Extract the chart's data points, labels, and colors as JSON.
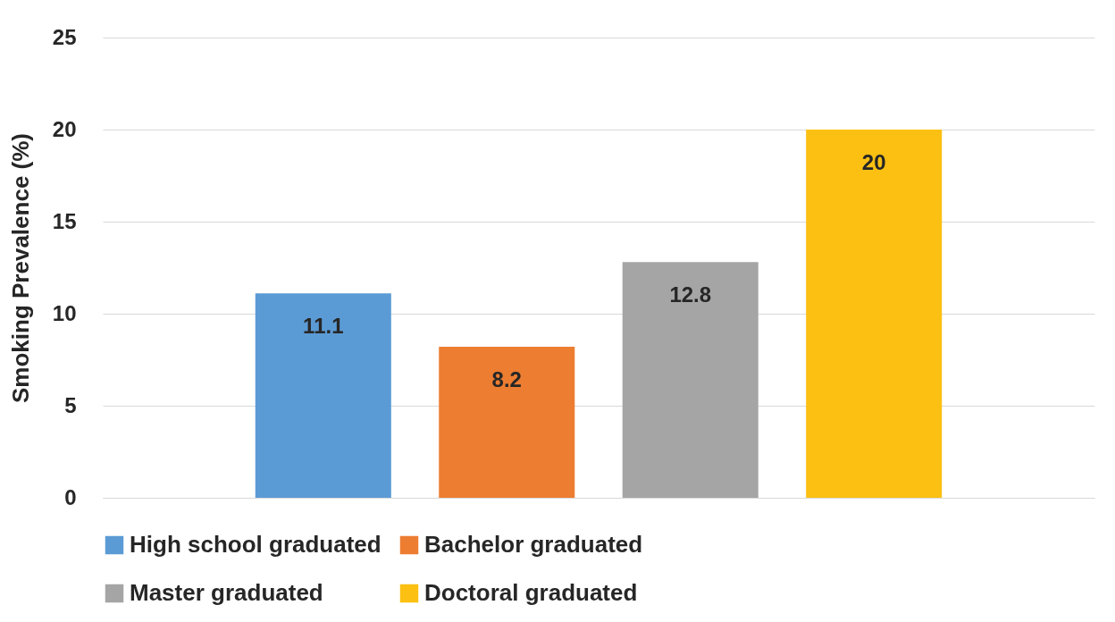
{
  "chart_data": {
    "type": "bar",
    "ylabel": "Smoking Prevalence (%)",
    "categories": [
      null
    ],
    "series": [
      {
        "name": "High school graduated",
        "color": "#5b9bd5",
        "values": [
          11.1
        ]
      },
      {
        "name": "Bachelor graduated",
        "color": "#ed7d31",
        "values": [
          8.2
        ]
      },
      {
        "name": "Master graduated",
        "color": "#a5a5a5",
        "values": [
          12.8
        ]
      },
      {
        "name": "Doctoral graduated",
        "color": "#fbc012",
        "values": [
          20
        ]
      }
    ],
    "ylim": [
      0,
      25
    ],
    "yticks": [
      0,
      5,
      10,
      15,
      20,
      25
    ],
    "grid": "y",
    "legend": "bottom",
    "data_labels": true,
    "tick_labels": "y"
  }
}
